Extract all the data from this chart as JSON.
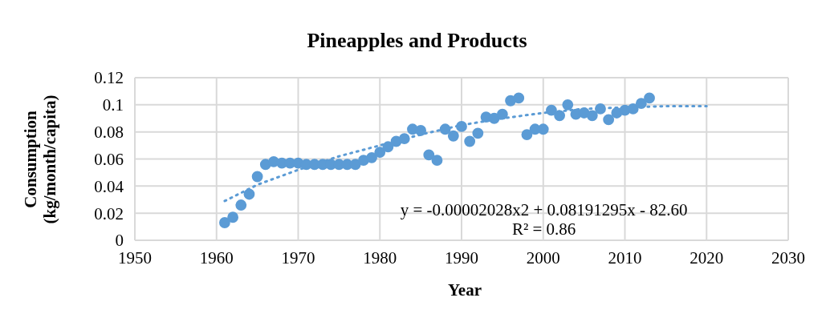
{
  "chart_data": {
    "type": "scatter",
    "title": "Pineapples and Products",
    "xlabel": "Year",
    "ylabel": "Consumption (kg/month/capita)",
    "xlim": [
      1950,
      2030
    ],
    "xticks": [
      1950,
      1960,
      1970,
      1980,
      1990,
      2000,
      2010,
      2020,
      2030
    ],
    "ylim": [
      0,
      0.12
    ],
    "yticks": [
      0,
      0.02,
      0.04,
      0.06,
      0.08,
      0.1,
      0.12
    ],
    "grid": true,
    "legend": false,
    "annotations": [
      "y = -0.00002028x2 + 0.08191295x - 82.60",
      "R² = 0.86"
    ],
    "series": [
      {
        "type": "scatter",
        "marker": "circle",
        "color": "#5b9bd5",
        "x": [
          1961,
          1962,
          1963,
          1964,
          1965,
          1966,
          1967,
          1968,
          1969,
          1970,
          1971,
          1972,
          1973,
          1974,
          1975,
          1976,
          1977,
          1978,
          1979,
          1980,
          1981,
          1982,
          1983,
          1984,
          1985,
          1986,
          1987,
          1988,
          1989,
          1990,
          1991,
          1992,
          1993,
          1994,
          1995,
          1996,
          1997,
          1998,
          1999,
          2000,
          2001,
          2002,
          2003,
          2004,
          2005,
          2006,
          2007,
          2008,
          2009,
          2010,
          2011,
          2012,
          2013
        ],
        "values": [
          0.013,
          0.017,
          0.026,
          0.034,
          0.047,
          0.056,
          0.058,
          0.057,
          0.057,
          0.057,
          0.056,
          0.056,
          0.056,
          0.056,
          0.056,
          0.056,
          0.056,
          0.059,
          0.061,
          0.065,
          0.069,
          0.073,
          0.075,
          0.082,
          0.081,
          0.063,
          0.059,
          0.082,
          0.077,
          0.084,
          0.073,
          0.079,
          0.091,
          0.09,
          0.093,
          0.103,
          0.105,
          0.078,
          0.082,
          0.082,
          0.096,
          0.092,
          0.1,
          0.093,
          0.094,
          0.092,
          0.097,
          0.089,
          0.094,
          0.096,
          0.097,
          0.101,
          0.105
        ]
      },
      {
        "type": "line",
        "marker": "none",
        "line_style": "dotted",
        "color": "#5b9bd5",
        "x": [
          1961,
          1965,
          1970,
          1975,
          1980,
          1985,
          1990,
          1995,
          2000,
          2005,
          2010,
          2015,
          2020
        ],
        "values": [
          0.029,
          0.041,
          0.052,
          0.062,
          0.07,
          0.078,
          0.085,
          0.09,
          0.094,
          0.097,
          0.098,
          0.099,
          0.099
        ]
      }
    ]
  }
}
